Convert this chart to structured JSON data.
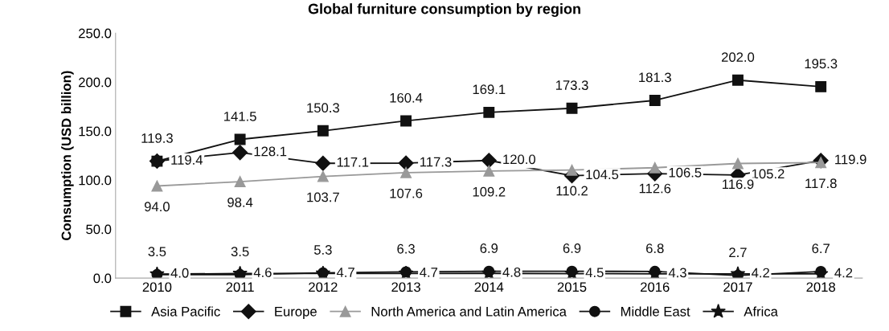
{
  "chart_data": {
    "type": "line",
    "title": "Global furniture consumption by region",
    "ylabel": "Consumption (USD billion)",
    "categories": [
      "2010",
      "2011",
      "2012",
      "2013",
      "2014",
      "2015",
      "2016",
      "2017",
      "2018"
    ],
    "series": [
      {
        "name": "Asia Pacific",
        "color": "#111111",
        "marker": "square",
        "values": [
          119.3,
          141.5,
          150.3,
          160.4,
          169.1,
          173.3,
          181.3,
          202.0,
          195.3
        ],
        "value_labels": [
          "119.3",
          "141.5",
          "150.3",
          "160.4",
          "169.1",
          "173.3",
          "181.3",
          "202.0",
          "195.3"
        ]
      },
      {
        "name": "Europe",
        "color": "#111111",
        "marker": "diamond",
        "values": [
          119.4,
          128.1,
          117.1,
          117.3,
          120.0,
          104.5,
          106.5,
          105.2,
          119.9
        ],
        "value_labels": [
          "119.4",
          "128.1",
          "117.1",
          "117.3",
          "120.0",
          "104.5",
          "106.5",
          "105.2",
          "119.9"
        ]
      },
      {
        "name": "North America and Latin America",
        "color": "#999999",
        "marker": "triangle",
        "values": [
          94.0,
          98.4,
          103.7,
          107.6,
          109.2,
          110.2,
          112.6,
          116.9,
          117.8
        ],
        "value_labels": [
          "94.0",
          "98.4",
          "103.7",
          "107.6",
          "109.2",
          "110.2",
          "112.6",
          "116.9",
          "117.8"
        ]
      },
      {
        "name": "Middle East",
        "color": "#111111",
        "marker": "circle",
        "values": [
          3.5,
          3.5,
          5.3,
          6.3,
          6.9,
          6.9,
          6.8,
          2.7,
          6.7
        ],
        "value_labels": [
          "3.5",
          "3.5",
          "5.3",
          "6.3",
          "6.9",
          "6.9",
          "6.8",
          "2.7",
          "6.7"
        ]
      },
      {
        "name": "Africa",
        "color": "#111111",
        "marker": "star",
        "values": [
          4.0,
          4.6,
          4.7,
          4.7,
          4.8,
          4.5,
          4.3,
          4.2,
          4.2
        ],
        "value_labels": [
          "4.0",
          "4.6",
          "4.7",
          "4.7",
          "4.8",
          "4.5",
          "4.3",
          "4.2",
          "4.2"
        ]
      }
    ],
    "ylim": [
      0,
      250
    ],
    "yticks": [
      {
        "value": 0,
        "label": "0.0"
      },
      {
        "value": 50,
        "label": "50.0"
      },
      {
        "value": 100,
        "label": "100.0"
      },
      {
        "value": 150,
        "label": "150.0"
      },
      {
        "value": 200,
        "label": "200.0"
      },
      {
        "value": 250,
        "label": "250.0"
      }
    ],
    "grid": false,
    "legend": "bottom",
    "line_style": "solid"
  }
}
